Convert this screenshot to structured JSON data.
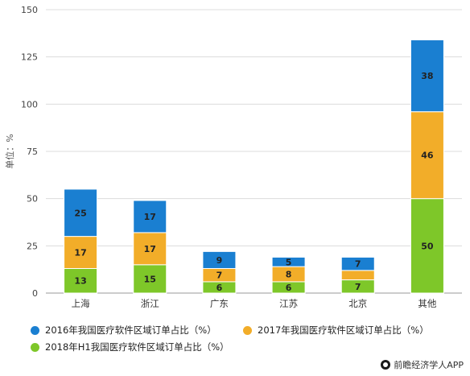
{
  "chart_data": {
    "type": "bar",
    "stacked": true,
    "categories": [
      "上海",
      "浙江",
      "广东",
      "江苏",
      "北京",
      "其他"
    ],
    "ylabel": "单位：%",
    "yticks": [
      0,
      25,
      50,
      75,
      100,
      125,
      150
    ],
    "ylim": [
      0,
      150
    ],
    "grid": true,
    "legend_position": "bottom",
    "series": [
      {
        "name": "2018年H1我国医疗软件区域订单占比（%）",
        "color": "#7ec729",
        "values": [
          13,
          15,
          6,
          6,
          7,
          50
        ],
        "labels": [
          "13",
          "15",
          "6",
          "6",
          "7",
          "50"
        ]
      },
      {
        "name": "2017年我国医疗软件区域订单占比（%）",
        "color": "#f2ad29",
        "values": [
          17,
          17,
          7,
          8,
          5,
          46
        ],
        "labels": [
          "17",
          "17",
          "7",
          "8",
          "",
          "46"
        ]
      },
      {
        "name": "2016年我国医疗软件区域订单占比（%）",
        "color": "#1a7fd1",
        "values": [
          25,
          17,
          9,
          5,
          7,
          38
        ],
        "labels": [
          "25",
          "17",
          "9",
          "5",
          "7",
          "38"
        ]
      }
    ]
  },
  "legend": {
    "item_2016": "2016年我国医疗软件区域订单占比（%）",
    "item_2017": "2017年我国医疗软件区域订单占比（%）",
    "item_2018": "2018年H1我国医疗软件区域订单占比（%）",
    "color_2016": "#1a7fd1",
    "color_2017": "#f2ad29",
    "color_2018": "#7ec729"
  },
  "footer": {
    "source": "前瞻经济学人APP"
  }
}
